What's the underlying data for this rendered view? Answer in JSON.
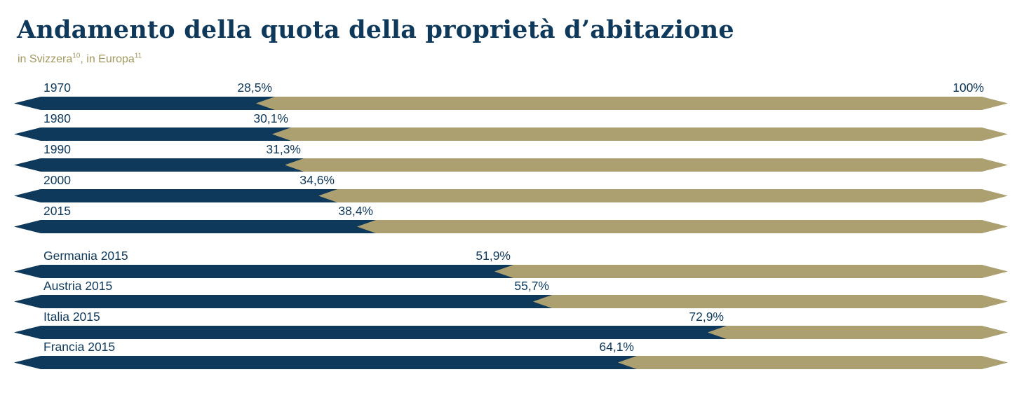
{
  "title": "Andamento della quota della proprietà d’abitazione",
  "subtitle": {
    "part1": "in Svizzera",
    "sup1": "10",
    "part2": ", in Europa",
    "sup2": "11"
  },
  "colors": {
    "navy": "#0e395b",
    "gold": "#ac9f70",
    "subtitle_text": "#a3975f",
    "background": "#ffffff"
  },
  "chart_data": {
    "type": "bar",
    "orientation": "horizontal",
    "title": "Andamento della quota della proprietà d’abitazione",
    "subtitle": "in Svizzera¹⁰, in Europa¹¹",
    "unit": "%",
    "xlim": [
      0,
      100
    ],
    "max_label": "100%",
    "legend": false,
    "series_colors": {
      "value": "#0e395b",
      "remainder": "#ac9f70"
    },
    "groups": [
      {
        "name": "Svizzera",
        "rows": [
          {
            "label": "1970",
            "value": 28.5,
            "value_label": "28,5%"
          },
          {
            "label": "1980",
            "value": 30.1,
            "value_label": "30,1%"
          },
          {
            "label": "1990",
            "value": 31.3,
            "value_label": "31,3%"
          },
          {
            "label": "2000",
            "value": 34.6,
            "value_label": "34,6%"
          },
          {
            "label": "2015",
            "value": 38.4,
            "value_label": "38,4%"
          }
        ]
      },
      {
        "name": "Europa",
        "rows": [
          {
            "label": "Germania 2015",
            "value": 51.9,
            "value_label": "51,9%"
          },
          {
            "label": "Austria 2015",
            "value": 55.7,
            "value_label": "55,7%"
          },
          {
            "label": "Italia 2015",
            "value": 72.9,
            "value_label": "72,9%"
          },
          {
            "label": "Francia 2015",
            "value": 64.1,
            "value_label": "64,1%"
          }
        ]
      }
    ]
  }
}
